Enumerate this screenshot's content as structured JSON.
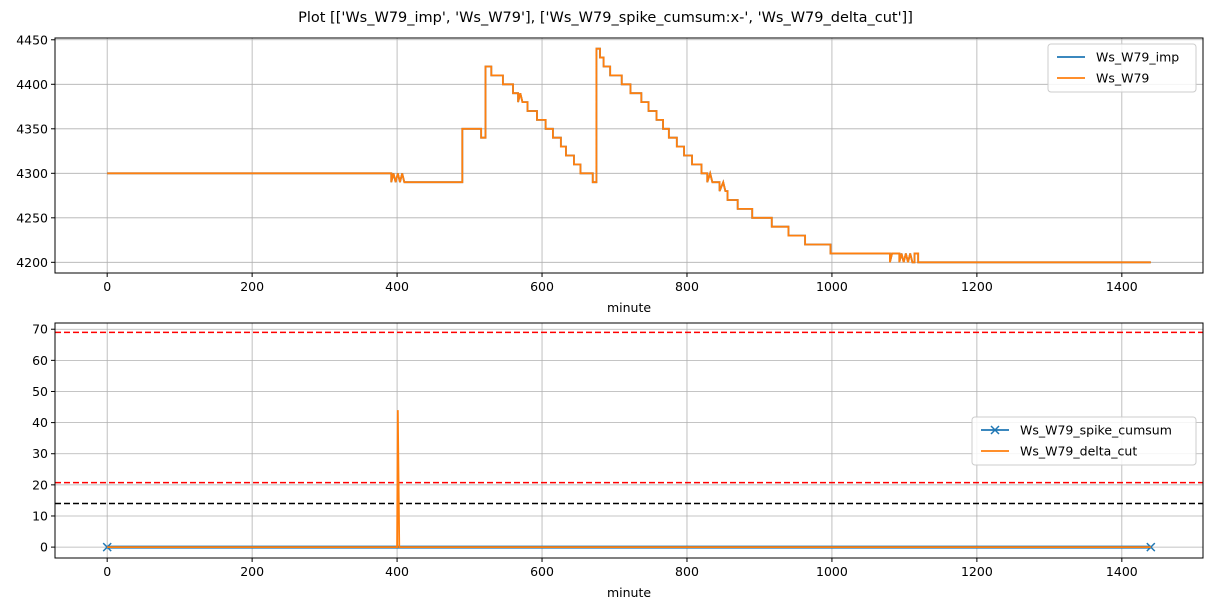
{
  "figure": {
    "title": "Plot [['Ws_W79_imp', 'Ws_W79'], ['Ws_W79_spike_cumsum:x-', 'Ws_W79_delta_cut']]"
  },
  "chart_data": [
    {
      "type": "line",
      "xlabel": "minute",
      "ylabel": "",
      "xlim": [
        -72,
        1512
      ],
      "ylim": [
        4188,
        4452
      ],
      "xticks": [
        0,
        200,
        400,
        600,
        800,
        1000,
        1200,
        1400
      ],
      "yticks": [
        4200,
        4250,
        4300,
        4350,
        4400,
        4450
      ],
      "grid": true,
      "legend_position": "top-right",
      "series": [
        {
          "name": "Ws_W79_imp",
          "color": "#1f77b4",
          "points": [
            [
              0,
              4300
            ],
            [
              392,
              4300
            ],
            [
              392,
              4290
            ],
            [
              395,
              4300
            ],
            [
              398,
              4290
            ],
            [
              401,
              4300
            ],
            [
              404,
              4290
            ],
            [
              407,
              4300
            ],
            [
              410,
              4290
            ],
            [
              490,
              4290
            ],
            [
              490,
              4350
            ],
            [
              516,
              4350
            ],
            [
              516,
              4340
            ],
            [
              522,
              4340
            ],
            [
              522,
              4420
            ],
            [
              530,
              4420
            ],
            [
              530,
              4410
            ],
            [
              546,
              4410
            ],
            [
              546,
              4400
            ],
            [
              560,
              4400
            ],
            [
              560,
              4390
            ],
            [
              567,
              4390
            ],
            [
              567,
              4380
            ],
            [
              570,
              4390
            ],
            [
              573,
              4380
            ],
            [
              580,
              4380
            ],
            [
              580,
              4370
            ],
            [
              593,
              4370
            ],
            [
              593,
              4360
            ],
            [
              605,
              4360
            ],
            [
              605,
              4350
            ],
            [
              615,
              4350
            ],
            [
              615,
              4340
            ],
            [
              626,
              4340
            ],
            [
              626,
              4330
            ],
            [
              633,
              4330
            ],
            [
              633,
              4320
            ],
            [
              644,
              4320
            ],
            [
              644,
              4310
            ],
            [
              653,
              4310
            ],
            [
              653,
              4300
            ],
            [
              670,
              4300
            ],
            [
              670,
              4290
            ],
            [
              675,
              4290
            ],
            [
              675,
              4440
            ],
            [
              680,
              4440
            ],
            [
              680,
              4430
            ],
            [
              685,
              4430
            ],
            [
              685,
              4420
            ],
            [
              694,
              4420
            ],
            [
              694,
              4410
            ],
            [
              710,
              4410
            ],
            [
              710,
              4400
            ],
            [
              722,
              4400
            ],
            [
              722,
              4390
            ],
            [
              737,
              4390
            ],
            [
              737,
              4380
            ],
            [
              747,
              4380
            ],
            [
              747,
              4370
            ],
            [
              758,
              4370
            ],
            [
              758,
              4360
            ],
            [
              767,
              4360
            ],
            [
              767,
              4350
            ],
            [
              775,
              4350
            ],
            [
              775,
              4340
            ],
            [
              786,
              4340
            ],
            [
              786,
              4330
            ],
            [
              796,
              4330
            ],
            [
              796,
              4320
            ],
            [
              807,
              4320
            ],
            [
              807,
              4310
            ],
            [
              820,
              4310
            ],
            [
              820,
              4300
            ],
            [
              828,
              4300
            ],
            [
              828,
              4290
            ],
            [
              832,
              4300
            ],
            [
              835,
              4290
            ],
            [
              845,
              4290
            ],
            [
              845,
              4280
            ],
            [
              850,
              4290
            ],
            [
              853,
              4280
            ],
            [
              856,
              4280
            ],
            [
              856,
              4270
            ],
            [
              870,
              4270
            ],
            [
              870,
              4260
            ],
            [
              890,
              4260
            ],
            [
              890,
              4250
            ],
            [
              917,
              4250
            ],
            [
              917,
              4240
            ],
            [
              940,
              4240
            ],
            [
              940,
              4230
            ],
            [
              963,
              4230
            ],
            [
              963,
              4220
            ],
            [
              998,
              4220
            ],
            [
              998,
              4210
            ],
            [
              1080,
              4210
            ],
            [
              1080,
              4200
            ],
            [
              1083,
              4210
            ],
            [
              1093,
              4210
            ],
            [
              1093,
              4200
            ],
            [
              1096,
              4210
            ],
            [
              1099,
              4200
            ],
            [
              1102,
              4210
            ],
            [
              1105,
              4200
            ],
            [
              1108,
              4210
            ],
            [
              1111,
              4200
            ],
            [
              1114,
              4200
            ],
            [
              1114,
              4210
            ],
            [
              1119,
              4210
            ],
            [
              1119,
              4200
            ],
            [
              1440,
              4200
            ]
          ]
        },
        {
          "name": "Ws_W79",
          "color": "#ff7f0e",
          "points": [
            [
              0,
              4300
            ],
            [
              392,
              4300
            ],
            [
              392,
              4290
            ],
            [
              395,
              4300
            ],
            [
              398,
              4290
            ],
            [
              401,
              4300
            ],
            [
              404,
              4290
            ],
            [
              407,
              4300
            ],
            [
              410,
              4290
            ],
            [
              490,
              4290
            ],
            [
              490,
              4350
            ],
            [
              516,
              4350
            ],
            [
              516,
              4340
            ],
            [
              522,
              4340
            ],
            [
              522,
              4420
            ],
            [
              530,
              4420
            ],
            [
              530,
              4410
            ],
            [
              546,
              4410
            ],
            [
              546,
              4400
            ],
            [
              560,
              4400
            ],
            [
              560,
              4390
            ],
            [
              567,
              4390
            ],
            [
              567,
              4380
            ],
            [
              570,
              4390
            ],
            [
              573,
              4380
            ],
            [
              580,
              4380
            ],
            [
              580,
              4370
            ],
            [
              593,
              4370
            ],
            [
              593,
              4360
            ],
            [
              605,
              4360
            ],
            [
              605,
              4350
            ],
            [
              615,
              4350
            ],
            [
              615,
              4340
            ],
            [
              626,
              4340
            ],
            [
              626,
              4330
            ],
            [
              633,
              4330
            ],
            [
              633,
              4320
            ],
            [
              644,
              4320
            ],
            [
              644,
              4310
            ],
            [
              653,
              4310
            ],
            [
              653,
              4300
            ],
            [
              670,
              4300
            ],
            [
              670,
              4290
            ],
            [
              675,
              4290
            ],
            [
              675,
              4440
            ],
            [
              680,
              4440
            ],
            [
              680,
              4430
            ],
            [
              685,
              4430
            ],
            [
              685,
              4420
            ],
            [
              694,
              4420
            ],
            [
              694,
              4410
            ],
            [
              710,
              4410
            ],
            [
              710,
              4400
            ],
            [
              722,
              4400
            ],
            [
              722,
              4390
            ],
            [
              737,
              4390
            ],
            [
              737,
              4380
            ],
            [
              747,
              4380
            ],
            [
              747,
              4370
            ],
            [
              758,
              4370
            ],
            [
              758,
              4360
            ],
            [
              767,
              4360
            ],
            [
              767,
              4350
            ],
            [
              775,
              4350
            ],
            [
              775,
              4340
            ],
            [
              786,
              4340
            ],
            [
              786,
              4330
            ],
            [
              796,
              4330
            ],
            [
              796,
              4320
            ],
            [
              807,
              4320
            ],
            [
              807,
              4310
            ],
            [
              820,
              4310
            ],
            [
              820,
              4300
            ],
            [
              828,
              4300
            ],
            [
              828,
              4290
            ],
            [
              832,
              4300
            ],
            [
              835,
              4290
            ],
            [
              845,
              4290
            ],
            [
              845,
              4280
            ],
            [
              850,
              4290
            ],
            [
              853,
              4280
            ],
            [
              856,
              4280
            ],
            [
              856,
              4270
            ],
            [
              870,
              4270
            ],
            [
              870,
              4260
            ],
            [
              890,
              4260
            ],
            [
              890,
              4250
            ],
            [
              917,
              4250
            ],
            [
              917,
              4240
            ],
            [
              940,
              4240
            ],
            [
              940,
              4230
            ],
            [
              963,
              4230
            ],
            [
              963,
              4220
            ],
            [
              998,
              4220
            ],
            [
              998,
              4210
            ],
            [
              1080,
              4210
            ],
            [
              1080,
              4200
            ],
            [
              1083,
              4210
            ],
            [
              1093,
              4210
            ],
            [
              1093,
              4200
            ],
            [
              1096,
              4210
            ],
            [
              1099,
              4200
            ],
            [
              1102,
              4210
            ],
            [
              1105,
              4200
            ],
            [
              1108,
              4210
            ],
            [
              1111,
              4200
            ],
            [
              1114,
              4200
            ],
            [
              1114,
              4210
            ],
            [
              1119,
              4210
            ],
            [
              1119,
              4200
            ],
            [
              1440,
              4200
            ]
          ]
        }
      ]
    },
    {
      "type": "line",
      "xlabel": "minute",
      "ylabel": "",
      "xlim": [
        -72,
        1512
      ],
      "ylim": [
        -3.5,
        72
      ],
      "xticks": [
        0,
        200,
        400,
        600,
        800,
        1000,
        1200,
        1400
      ],
      "yticks": [
        0,
        10,
        20,
        30,
        40,
        50,
        60,
        70
      ],
      "grid": true,
      "legend_position": "center-right",
      "series": [
        {
          "name": "Ws_W79_spike_cumsum",
          "color": "#1f77b4",
          "marker": "x",
          "points": [
            [
              0,
              0
            ],
            [
              1440,
              0
            ]
          ]
        },
        {
          "name": "Ws_W79_delta_cut",
          "color": "#ff7f0e",
          "points": [
            [
              0,
              0
            ],
            [
              400,
              0
            ],
            [
              401,
              44
            ],
            [
              403,
              0
            ],
            [
              1440,
              0
            ]
          ]
        }
      ],
      "hlines": [
        {
          "y": 69,
          "color": "#ff0000",
          "style": "dashed"
        },
        {
          "y": 20.7,
          "color": "#ff0000",
          "style": "dashed"
        },
        {
          "y": 14,
          "color": "#000000",
          "style": "dashed"
        }
      ]
    }
  ]
}
